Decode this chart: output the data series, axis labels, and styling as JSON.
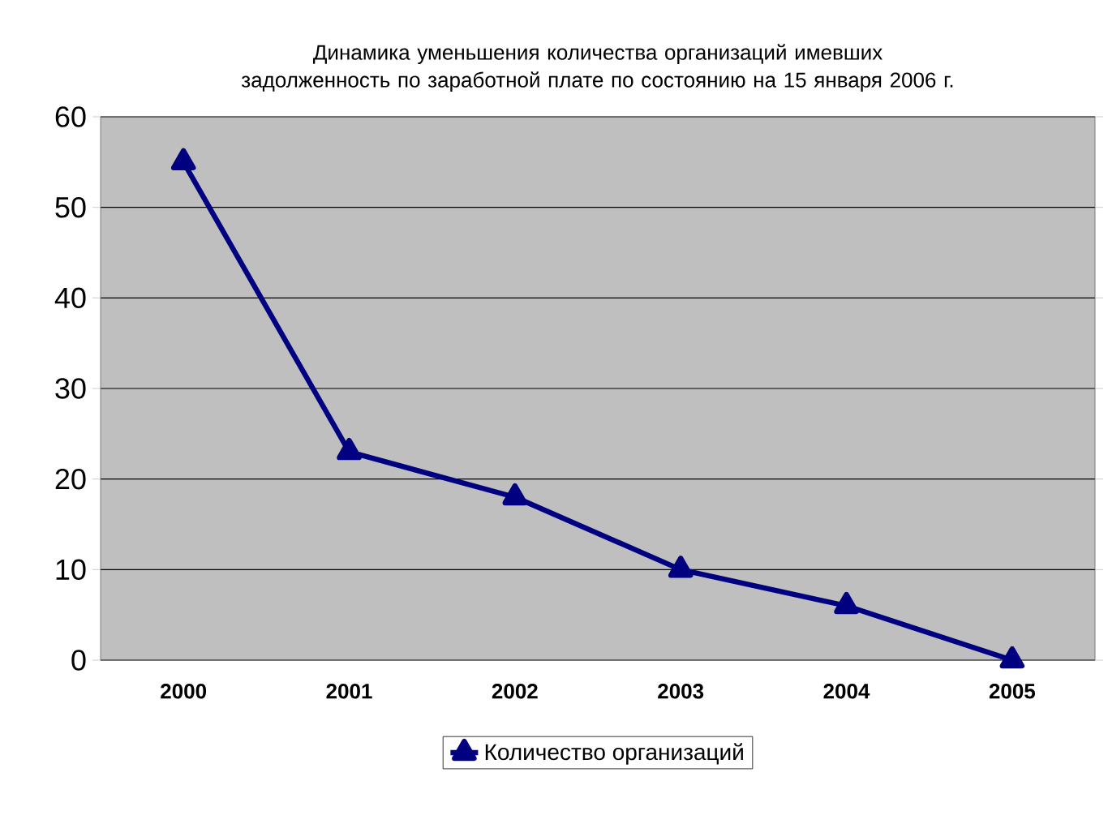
{
  "chart_data": {
    "type": "line",
    "title": "Динамика уменьшения количества организаций имевших задолженность по заработной плате по состоянию на 15 января 2006 г.",
    "categories": [
      "2000",
      "2001",
      "2002",
      "2003",
      "2004",
      "2005"
    ],
    "series": [
      {
        "name": "Количество организаций",
        "color": "#000080",
        "values": [
          55,
          23,
          18,
          10,
          6,
          0
        ]
      }
    ],
    "ylim": [
      0,
      60
    ],
    "yticks": [
      0,
      10,
      20,
      30,
      40,
      50,
      60
    ],
    "grid": "y",
    "legend": "bottom",
    "marker": "triangle",
    "line_style": "solid"
  }
}
